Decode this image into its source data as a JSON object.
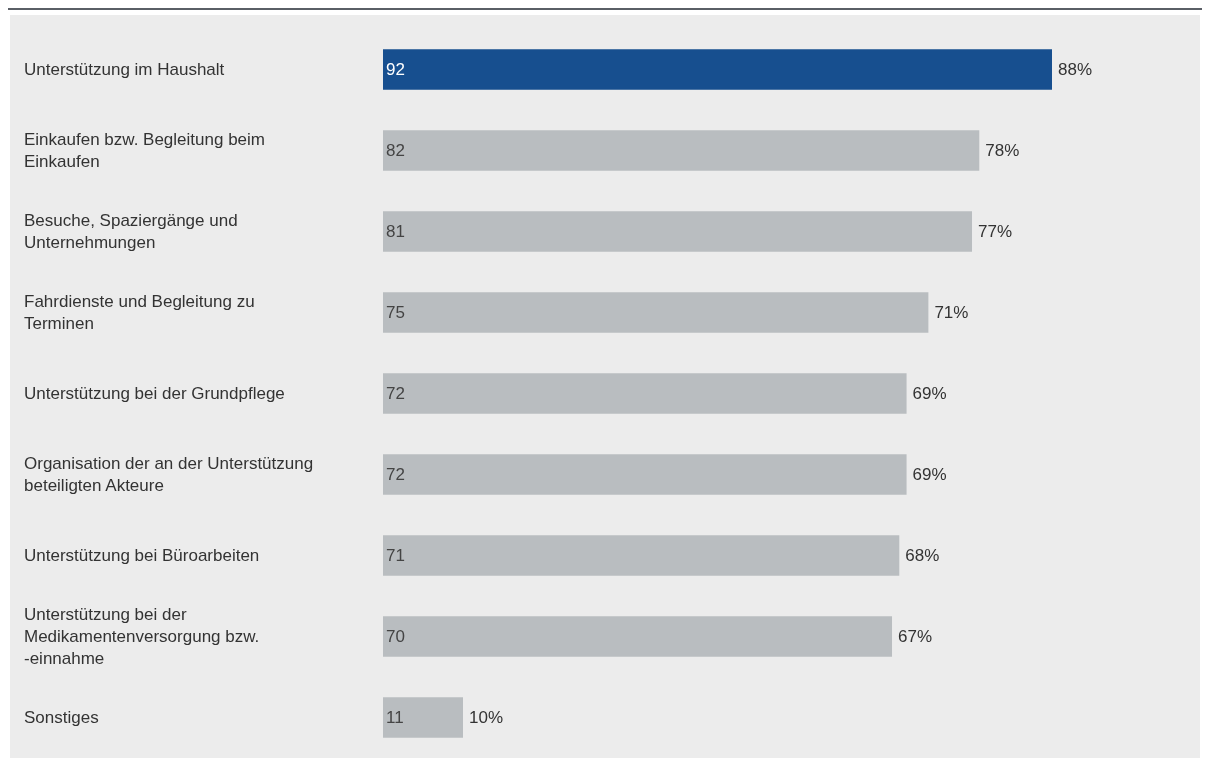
{
  "chart_data": {
    "type": "bar",
    "orientation": "horizontal",
    "categories": [
      "Unterstützung im Haushalt",
      "Einkaufen bzw. Begleitung beim Einkaufen",
      "Besuche, Spaziergänge und Unternehmungen",
      "Fahrdienste und Begleitung zu Terminen",
      "Unterstützung bei der Grundpflege",
      "Organisation der an der Unterstützung beteiligten Akteure",
      "Unterstützung bei Büroarbeiten",
      "Unterstützung bei der Medikamentenversorgung bzw. -einnahme",
      "Sonstiges"
    ],
    "values": [
      92,
      82,
      81,
      75,
      72,
      72,
      71,
      70,
      11
    ],
    "colors": [
      "#174f8f",
      "#b9bdc0",
      "#b9bdc0",
      "#b9bdc0",
      "#b9bdc0",
      "#b9bdc0",
      "#b9bdc0",
      "#b9bdc0",
      "#b9bdc0"
    ],
    "data_labels": true,
    "annotations": [
      {
        "text": "88%",
        "x": 92,
        "y": "Unterstützung im Haushalt"
      },
      {
        "text": "78%",
        "x": 82,
        "y": "Einkaufen bzw. Begleitung beim Einkaufen"
      },
      {
        "text": "77%",
        "x": 81,
        "y": "Besuche, Spaziergänge und Unternehmungen"
      },
      {
        "text": "71%",
        "x": 75,
        "y": "Fahrdienste und Begleitung zu Terminen"
      },
      {
        "text": "69%",
        "x": 72,
        "y": "Unterstützung bei der Grundpflege"
      },
      {
        "text": "69%",
        "x": 72,
        "y": "Organisation der an der Unterstützung beteiligten Akteure"
      },
      {
        "text": "68%",
        "x": 71,
        "y": "Unterstützung bei Büroarbeiten"
      },
      {
        "text": "67%",
        "x": 70,
        "y": "Unterstützung bei der Medikamentenversorgung bzw. -einnahme"
      },
      {
        "text": "10%",
        "x": 11,
        "y": "Sonstiges"
      }
    ]
  }
}
